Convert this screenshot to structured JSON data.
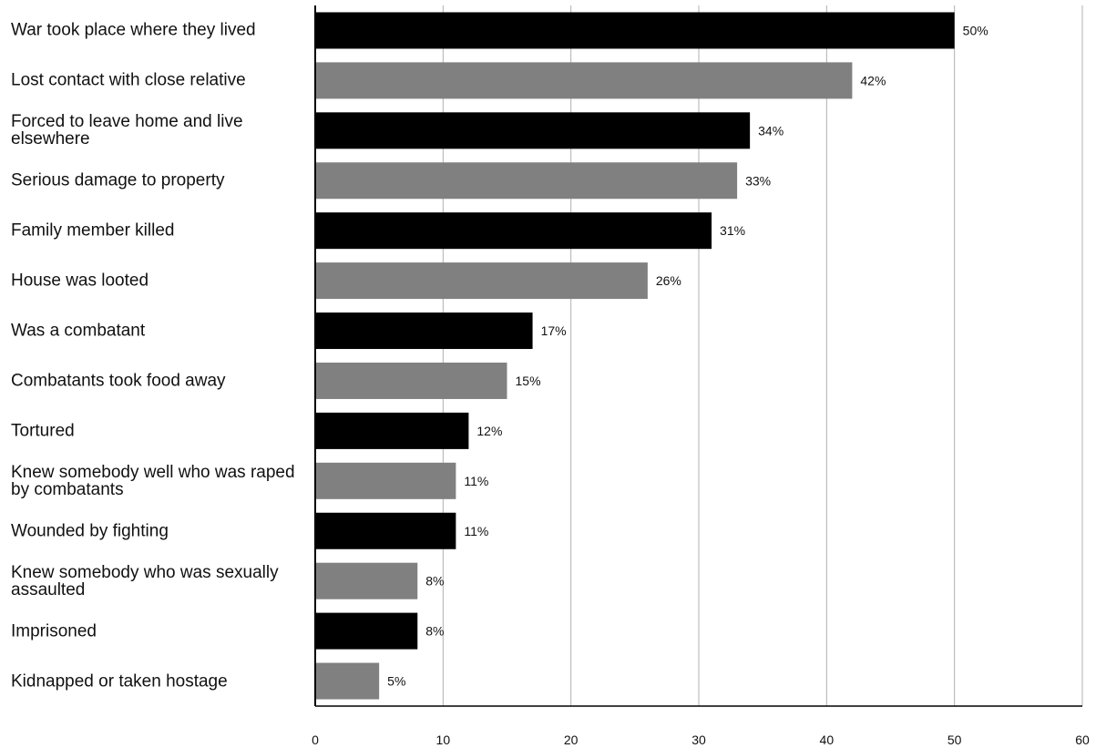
{
  "chart_data": {
    "type": "bar",
    "orientation": "horizontal",
    "categories": [
      "War took place where they lived",
      "Lost contact with close relative",
      "Forced to leave home and live elsewhere",
      "Serious damage to property",
      "Family member killed",
      "House was looted",
      "Was a combatant",
      "Combatants took food away",
      "Tortured",
      "Knew somebody well who was raped by combatants",
      "Wounded by fighting",
      "Knew somebody who was sexually assaulted",
      "Imprisoned",
      "Kidnapped or taken hostage"
    ],
    "values": [
      50,
      42,
      34,
      33,
      31,
      26,
      17,
      15,
      12,
      11,
      11,
      8,
      8,
      5
    ],
    "data_labels": [
      "50%",
      "42%",
      "34%",
      "33%",
      "31%",
      "26%",
      "17%",
      "15%",
      "12%",
      "11%",
      "11%",
      "8%",
      "8%",
      "5%"
    ],
    "xlim": [
      0,
      60
    ],
    "x_ticks": [
      "0",
      "10",
      "20",
      "30",
      "40",
      "50",
      "60"
    ],
    "grid": "vertical",
    "legend": "none",
    "title": "",
    "xlabel": "",
    "ylabel": "",
    "colors": [
      "#000000",
      "#808080"
    ]
  }
}
